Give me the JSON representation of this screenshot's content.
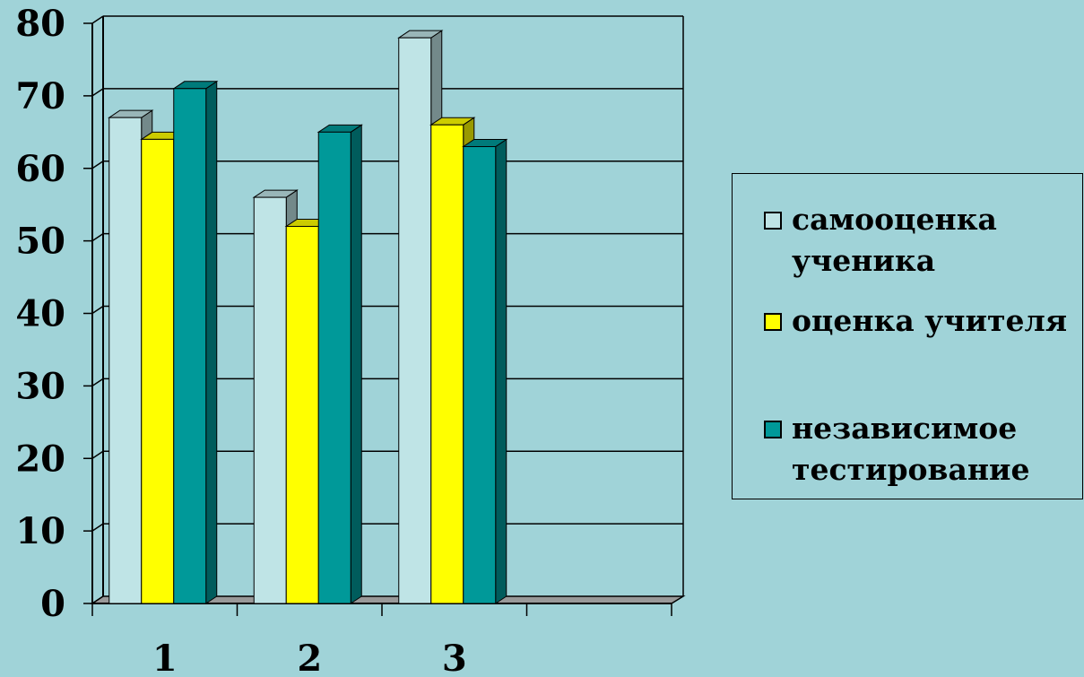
{
  "chart_data": {
    "type": "bar",
    "categories": [
      "1",
      "2",
      "3",
      ""
    ],
    "series": [
      {
        "name": "самооценка ученика",
        "values": [
          67,
          56,
          78,
          null
        ],
        "color": "#bfe4e6"
      },
      {
        "name": "оценка учителя",
        "values": [
          64,
          52,
          66,
          null
        ],
        "color": "#ffff00"
      },
      {
        "name": "независимое тестирование",
        "values": [
          71,
          65,
          63,
          null
        ],
        "color": "#009999"
      }
    ],
    "ylim": [
      0,
      80
    ],
    "yticks": [
      0,
      10,
      20,
      30,
      40,
      50,
      60,
      70,
      80
    ],
    "grid": true,
    "legend_position": "right",
    "three_d": true,
    "title": "",
    "xlabel": "",
    "ylabel": ""
  },
  "colors": {
    "background": "#a0d3d8",
    "floor": "#999999",
    "gridline": "#000000"
  }
}
